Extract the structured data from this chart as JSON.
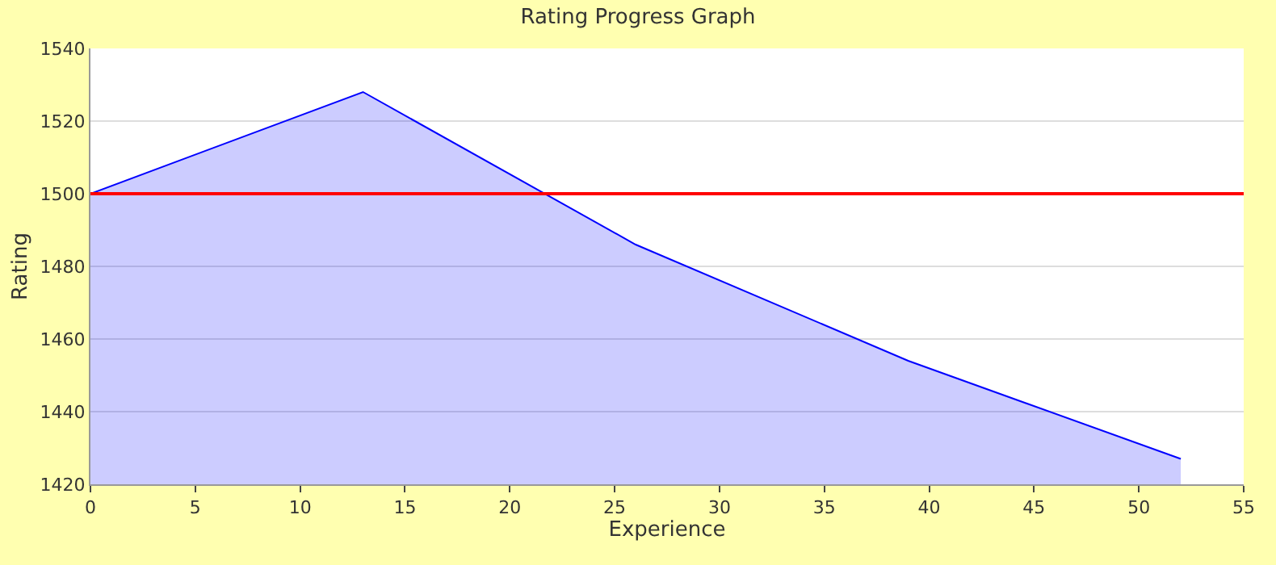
{
  "chart_data": {
    "type": "area",
    "title": "Rating Progress Graph",
    "xlabel": "Experience",
    "ylabel": "Rating",
    "x": [
      0,
      13,
      26,
      39,
      52
    ],
    "series": [
      {
        "color": "#0000ff",
        "values": [
          1500,
          1528,
          1486,
          1454,
          1427
        ]
      }
    ],
    "xlim": [
      0,
      55
    ],
    "xticks": [
      0,
      5,
      10,
      15,
      20,
      25,
      30,
      35,
      40,
      45,
      50,
      55
    ],
    "ylim": [
      1420,
      1540
    ],
    "yticks": [
      1420,
      1440,
      1460,
      1480,
      1500,
      1520,
      1540
    ],
    "ref_lines": [
      {
        "axis": "y",
        "value": 1500,
        "color": "#ff0000"
      }
    ],
    "grid": "y",
    "legend": false
  }
}
